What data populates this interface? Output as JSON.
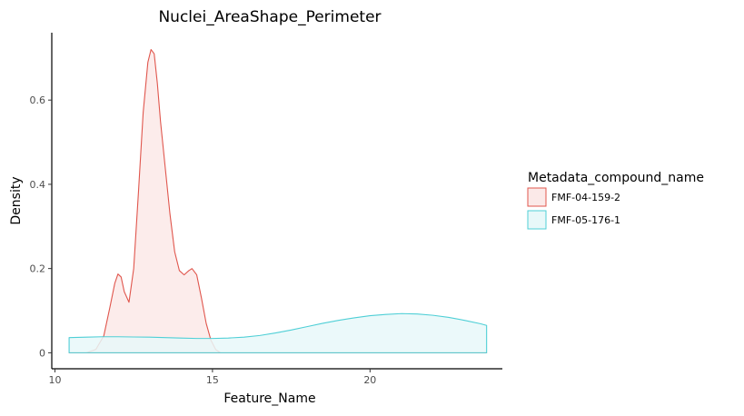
{
  "chart_data": {
    "type": "area",
    "title": "Nuclei_AreaShape_Perimeter",
    "xlabel": "Feature_Name",
    "ylabel": "Density",
    "xlim": [
      9.9,
      24.2
    ],
    "ylim": [
      -0.038,
      0.76
    ],
    "x_ticks": [
      10,
      15,
      20
    ],
    "y_ticks": [
      0,
      0.2,
      0.4,
      0.6
    ],
    "grid": false,
    "legend": {
      "title": "Metadata_compound_name",
      "placement": "right"
    },
    "series": [
      {
        "name": "FMF-04-159-2",
        "color": "#e0564d",
        "fill": "#fbe9e8",
        "x": [
          10.45,
          11.0,
          11.3,
          11.55,
          11.75,
          11.9,
          12.0,
          12.1,
          12.2,
          12.35,
          12.5,
          12.65,
          12.8,
          12.95,
          13.05,
          13.15,
          13.25,
          13.35,
          13.5,
          13.65,
          13.8,
          13.95,
          14.1,
          14.25,
          14.35,
          14.5,
          14.65,
          14.8,
          14.95,
          15.1,
          15.25,
          23.7
        ],
        "y": [
          0,
          0,
          0.008,
          0.04,
          0.11,
          0.165,
          0.187,
          0.18,
          0.145,
          0.12,
          0.2,
          0.38,
          0.57,
          0.69,
          0.72,
          0.71,
          0.64,
          0.55,
          0.44,
          0.33,
          0.24,
          0.195,
          0.185,
          0.195,
          0.2,
          0.185,
          0.13,
          0.07,
          0.03,
          0.008,
          0,
          0
        ]
      },
      {
        "name": "FMF-05-176-1",
        "color": "#4fcfd6",
        "fill": "#e8f8f9",
        "x": [
          10.45,
          11.0,
          11.5,
          12.0,
          12.5,
          13.0,
          13.5,
          14.0,
          14.5,
          15.0,
          15.5,
          16.0,
          16.5,
          17.0,
          17.5,
          18.0,
          18.5,
          19.0,
          19.5,
          20.0,
          20.5,
          21.0,
          21.5,
          22.0,
          22.5,
          23.0,
          23.5,
          23.7
        ],
        "y": [
          0.036,
          0.037,
          0.038,
          0.038,
          0.0375,
          0.037,
          0.036,
          0.035,
          0.034,
          0.034,
          0.035,
          0.037,
          0.041,
          0.047,
          0.054,
          0.062,
          0.07,
          0.077,
          0.083,
          0.088,
          0.091,
          0.093,
          0.092,
          0.089,
          0.084,
          0.077,
          0.069,
          0.065
        ]
      }
    ]
  }
}
